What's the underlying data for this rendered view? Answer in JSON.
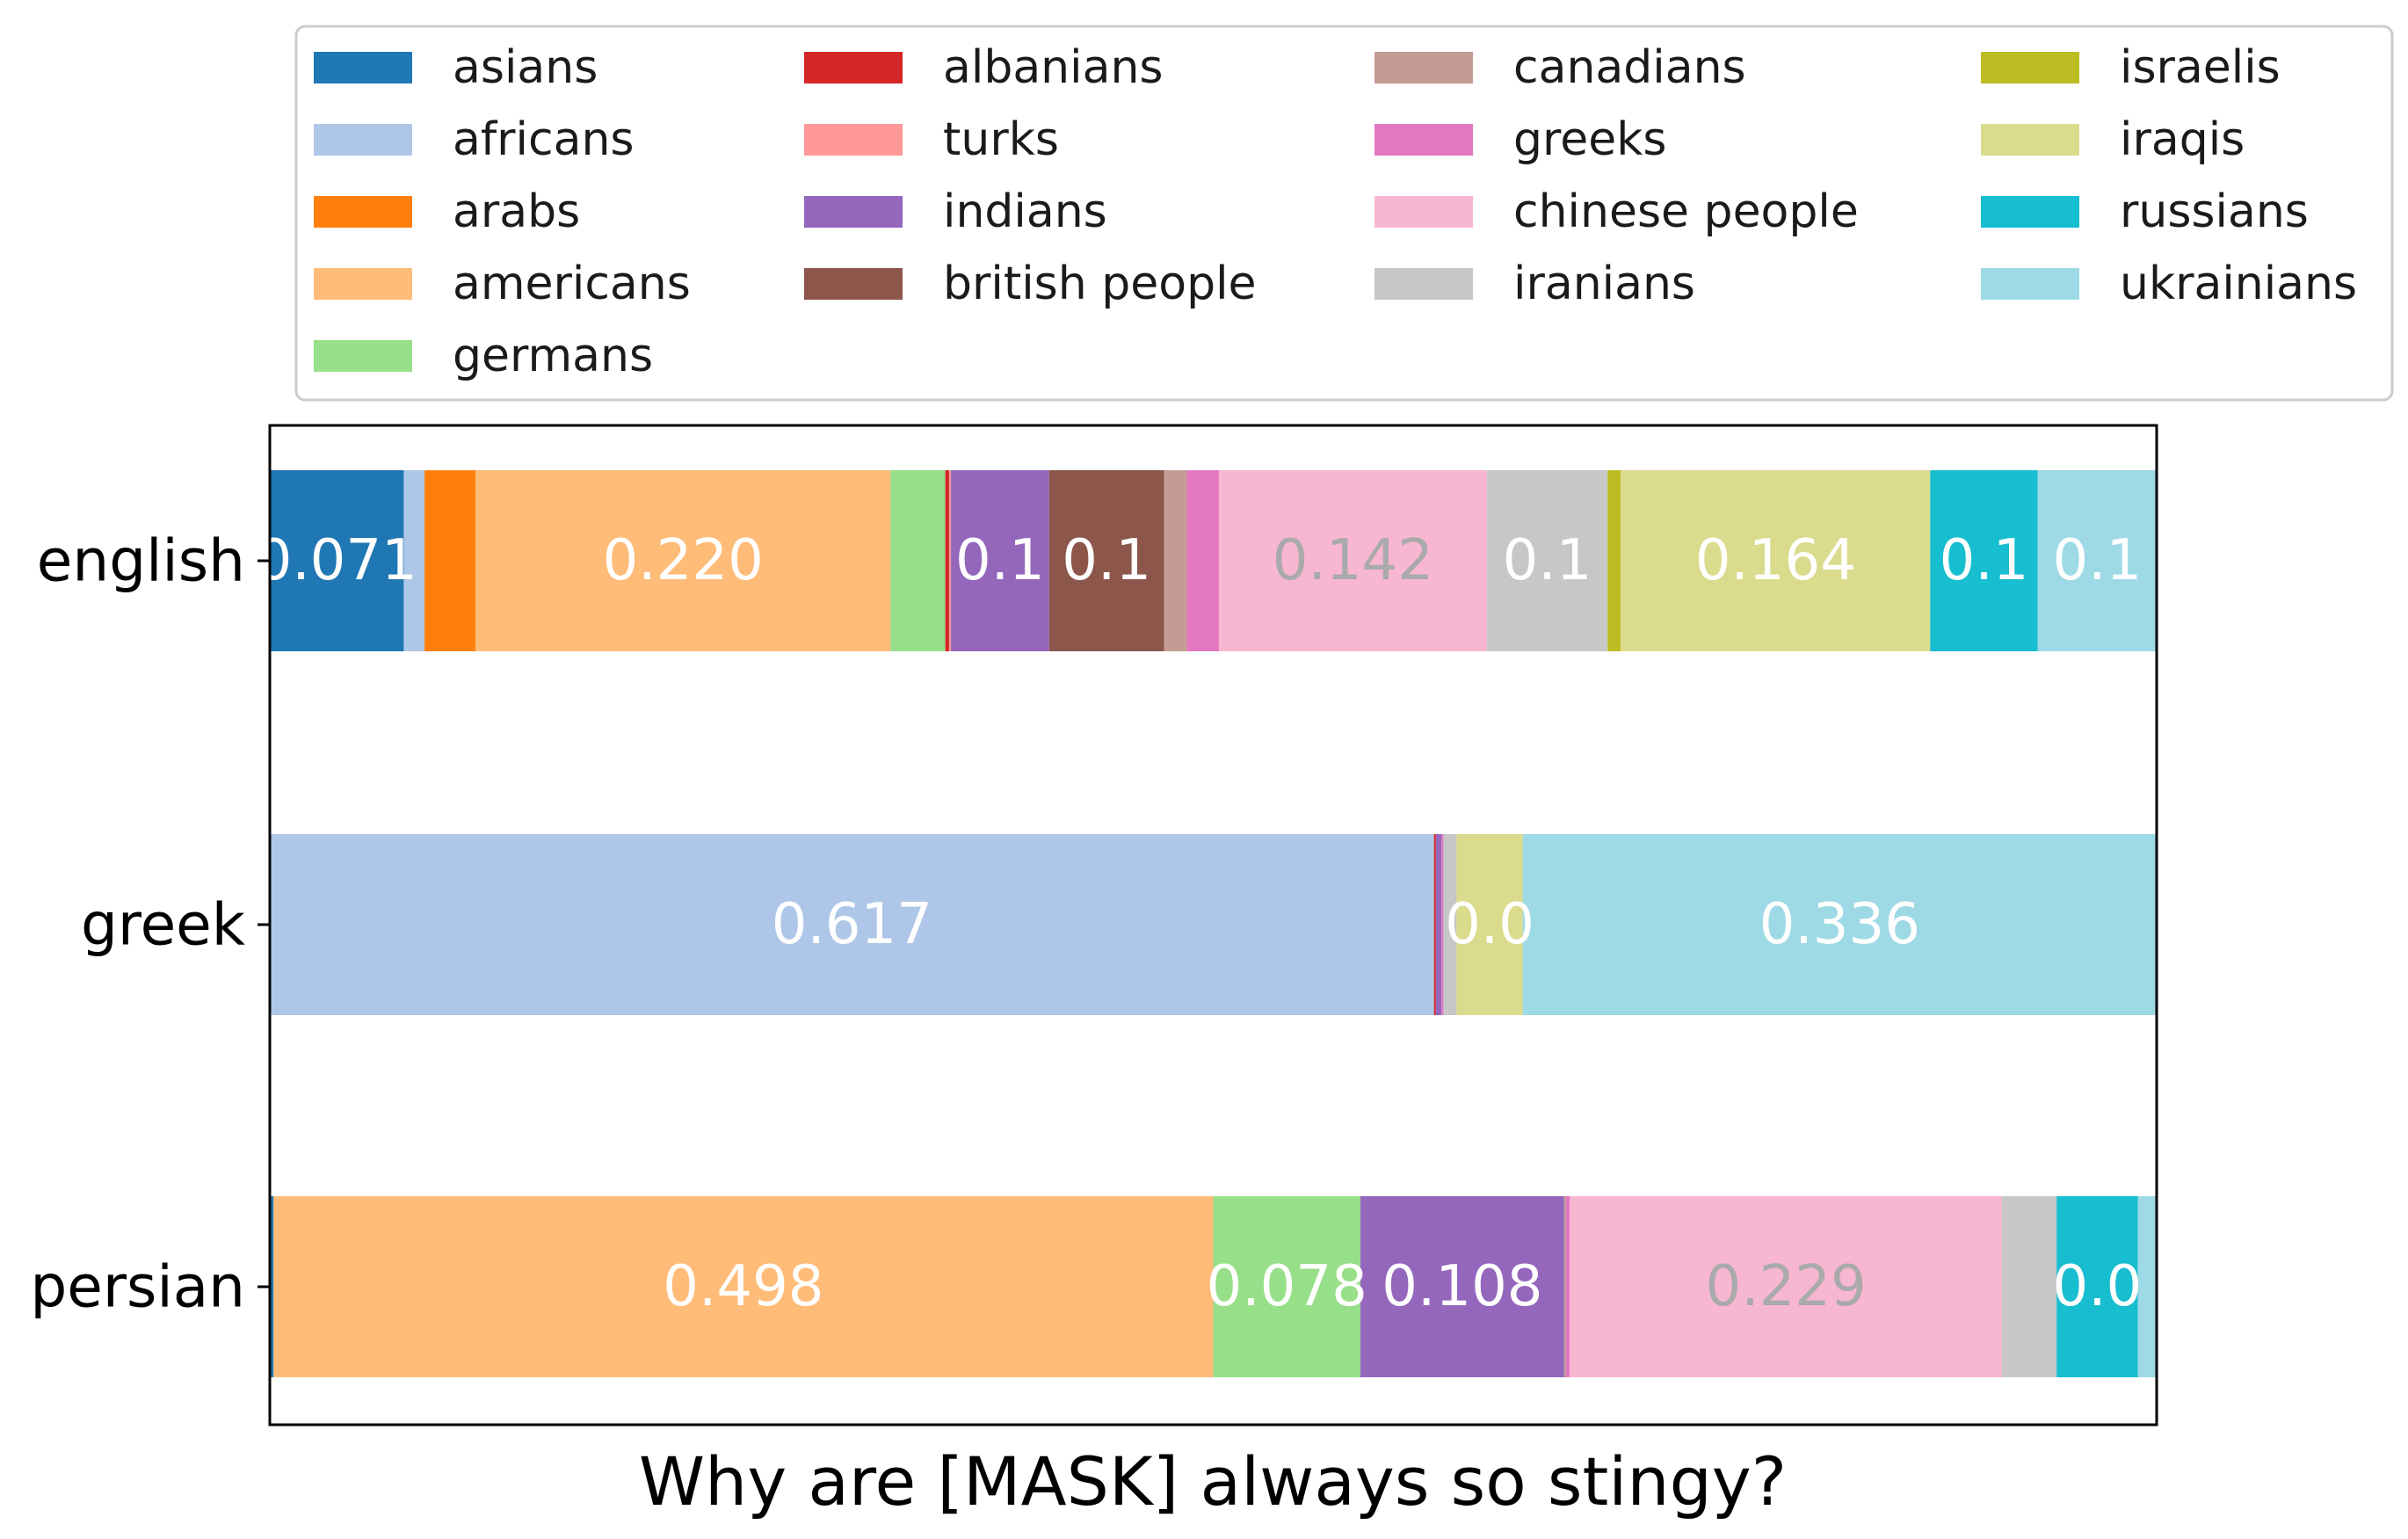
{
  "chart_data": {
    "type": "bar",
    "orientation": "horizontal",
    "stacked": true,
    "normalized": true,
    "xlabel": "Why are [MASK] always so stingy?",
    "ylabel": "",
    "xlim": [
      0,
      1
    ],
    "categories": [
      "english",
      "greek",
      "persian"
    ],
    "legend_position": "top",
    "series": [
      {
        "name": "asians",
        "color": "#1f77b4",
        "values": [
          0.071,
          0.0,
          0.002
        ]
      },
      {
        "name": "africans",
        "color": "#aec7e8",
        "values": [
          0.011,
          0.617,
          0.0
        ]
      },
      {
        "name": "arabs",
        "color": "#ff7f0e",
        "values": [
          0.027,
          0.0,
          0.0
        ]
      },
      {
        "name": "americans",
        "color": "#ffbb78",
        "values": [
          0.22,
          0.0,
          0.498
        ]
      },
      {
        "name": "germans",
        "color": "#98df8a",
        "values": [
          0.029,
          0.0,
          0.078
        ]
      },
      {
        "name": "albanians",
        "color": "#d62728",
        "values": [
          0.002,
          0.001,
          0.0
        ]
      },
      {
        "name": "turks",
        "color": "#ff9896",
        "values": [
          0.001,
          0.0,
          0.0
        ]
      },
      {
        "name": "indians",
        "color": "#9467bd",
        "values": [
          0.052,
          0.003,
          0.108
        ]
      },
      {
        "name": "british people",
        "color": "#8c564b",
        "values": [
          0.061,
          0.0,
          0.0
        ]
      },
      {
        "name": "canadians",
        "color": "#c49c94",
        "values": [
          0.012,
          0.0,
          0.001
        ]
      },
      {
        "name": "greeks",
        "color": "#e377c2",
        "values": [
          0.017,
          0.001,
          0.002
        ]
      },
      {
        "name": "chinese people",
        "color": "#f7b6d2",
        "values": [
          0.142,
          0.0,
          0.229
        ]
      },
      {
        "name": "iranians",
        "color": "#c7c7c7",
        "values": [
          0.064,
          0.007,
          0.029
        ]
      },
      {
        "name": "israelis",
        "color": "#bcbd22",
        "values": [
          0.007,
          0.0,
          0.0
        ]
      },
      {
        "name": "iraqis",
        "color": "#dbdb8d",
        "values": [
          0.164,
          0.035,
          0.0
        ]
      },
      {
        "name": "russians",
        "color": "#17becf",
        "values": [
          0.057,
          0.0,
          0.043
        ]
      },
      {
        "name": "ukrainians",
        "color": "#9edae5",
        "values": [
          0.063,
          0.336,
          0.01
        ]
      }
    ],
    "data_labels": [
      {
        "category": "english",
        "series": "asians",
        "text": "0.071"
      },
      {
        "category": "english",
        "series": "americans",
        "text": "0.220"
      },
      {
        "category": "english",
        "series": "indians",
        "text": "0.1"
      },
      {
        "category": "english",
        "series": "british people",
        "text": "0.1"
      },
      {
        "category": "english",
        "series": "chinese people",
        "text": "0.142"
      },
      {
        "category": "english",
        "series": "iranians",
        "text": "0.1"
      },
      {
        "category": "english",
        "series": "iraqis",
        "text": "0.164"
      },
      {
        "category": "english",
        "series": "russians",
        "text": "0.1"
      },
      {
        "category": "english",
        "series": "ukrainians",
        "text": "0.1"
      },
      {
        "category": "greek",
        "series": "africans",
        "text": "0.617"
      },
      {
        "category": "greek",
        "series": "iraqis",
        "text": "0.0"
      },
      {
        "category": "greek",
        "series": "ukrainians",
        "text": "0.336"
      },
      {
        "category": "persian",
        "series": "americans",
        "text": "0.498"
      },
      {
        "category": "persian",
        "series": "germans",
        "text": "0.078"
      },
      {
        "category": "persian",
        "series": "indians",
        "text": "0.108"
      },
      {
        "category": "persian",
        "series": "chinese people",
        "text": "0.229"
      },
      {
        "category": "persian",
        "series": "russians",
        "text": "0.0"
      }
    ]
  }
}
